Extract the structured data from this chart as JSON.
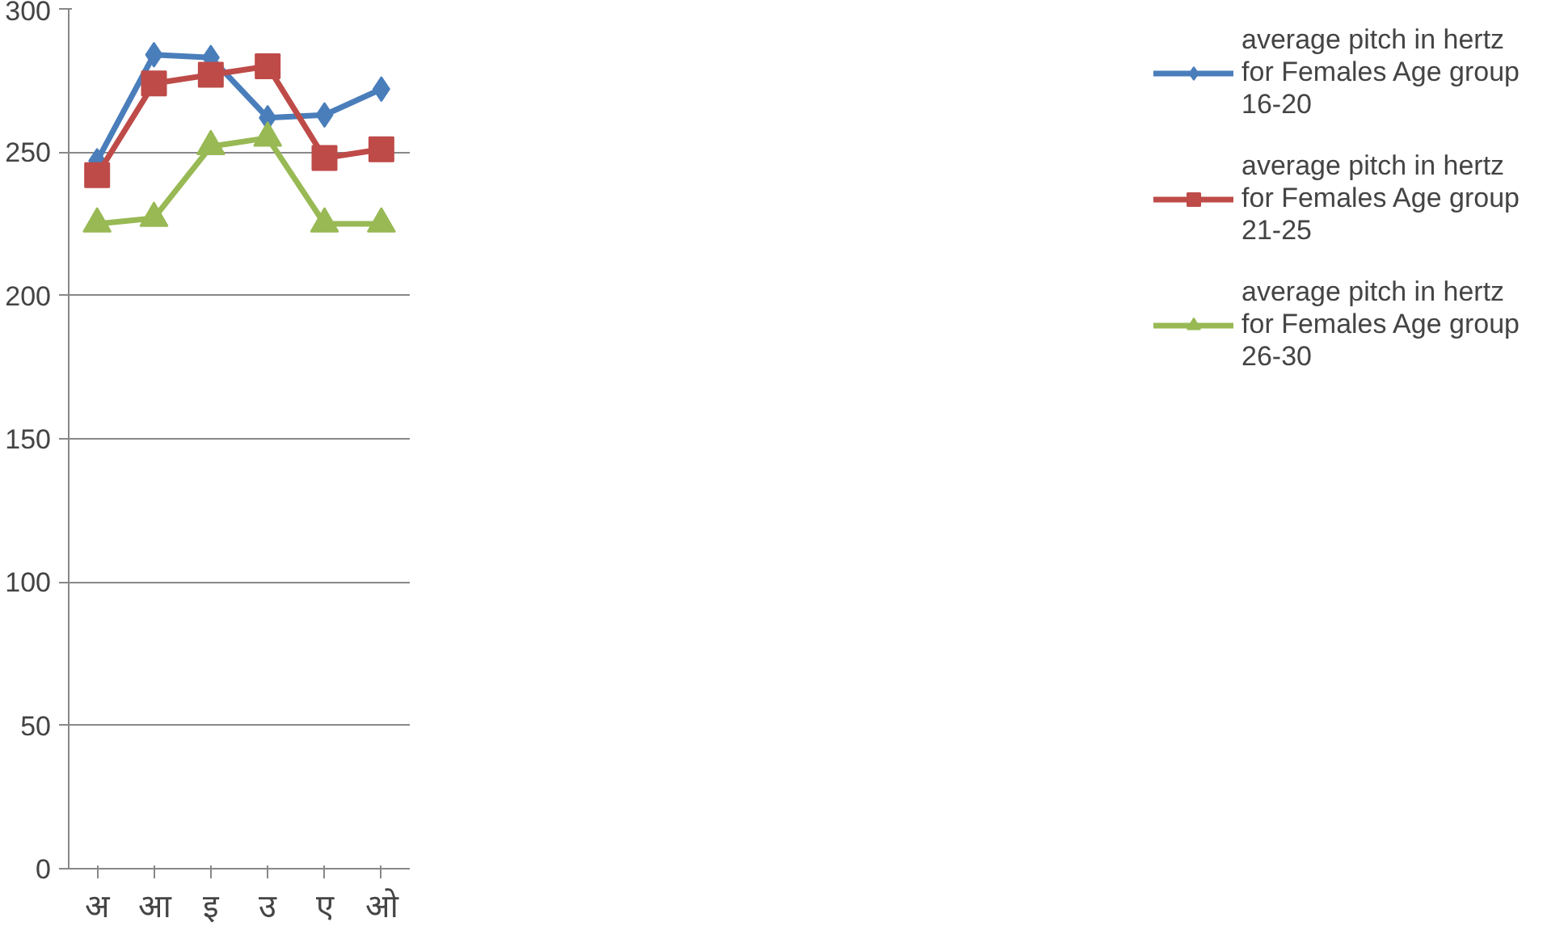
{
  "chart_data": {
    "type": "line",
    "categories": [
      "अ",
      "आ",
      "इ",
      "उ",
      "ए",
      "ओ"
    ],
    "series": [
      {
        "name": "average pitch in hertz for Females Age group 16-20",
        "color": "#4a7ebb",
        "marker": "diamond",
        "values": [
          247,
          284,
          283,
          262,
          263,
          272
        ]
      },
      {
        "name": "average pitch in hertz for Females Age group 21-25",
        "color": "#be4b48",
        "marker": "square",
        "values": [
          242,
          274,
          277,
          280,
          248,
          251
        ]
      },
      {
        "name": "average pitch in hertz for Females Age group 26-30",
        "color": "#98b954",
        "marker": "triangle",
        "values": [
          225,
          227,
          252,
          255,
          225,
          225
        ]
      }
    ],
    "ylim": [
      0,
      300
    ],
    "yticks": [
      0,
      50,
      100,
      150,
      200,
      250,
      300
    ],
    "grid": "y",
    "legend": "right"
  }
}
